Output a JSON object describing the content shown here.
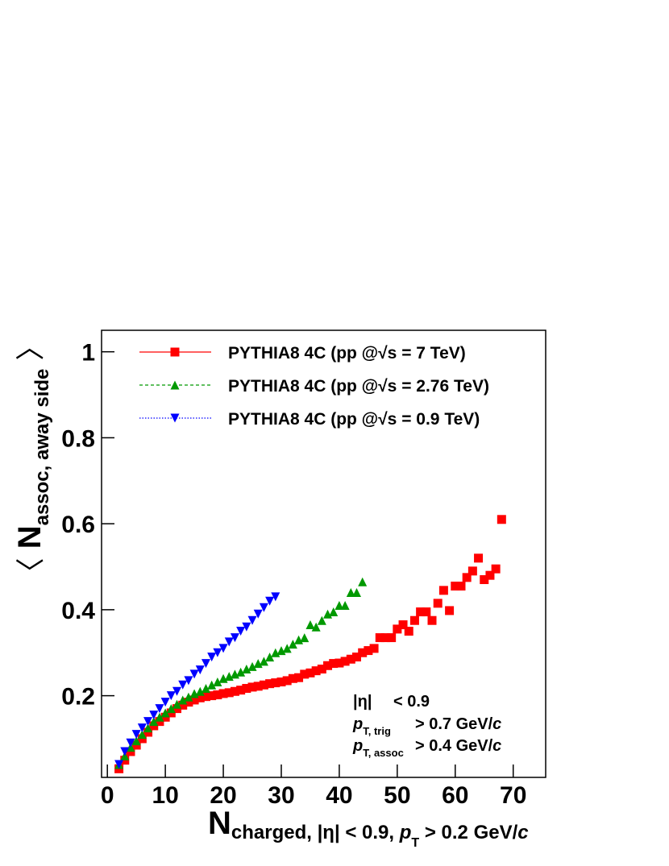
{
  "chart_data": {
    "type": "scatter",
    "x_label": [
      "N",
      "charged, |η| < 0.9, ",
      "p",
      "T",
      " > 0.2 GeV/",
      "c"
    ],
    "y_label": [
      "〈",
      " N",
      "assoc, away side",
      " 〉"
    ],
    "xlim": [
      -1,
      75.6
    ],
    "ylim": [
      0.01,
      1.05
    ],
    "xticks": [
      0,
      10,
      20,
      30,
      40,
      50,
      60,
      70
    ],
    "yticks": [
      0.2,
      0.4,
      0.6,
      0.8,
      1
    ],
    "legend": "top-left",
    "series": [
      {
        "name": "PYTHIA8 4C (pp @√s = 7 TeV)",
        "color": "#ff0000",
        "marker": "square",
        "line": "solid",
        "x": [
          2,
          3,
          4,
          5,
          6,
          7,
          8,
          9,
          10,
          11,
          12,
          13,
          14,
          15,
          16,
          17,
          18,
          19,
          20,
          21,
          22,
          23,
          24,
          25,
          26,
          27,
          28,
          29,
          30,
          31,
          32,
          33,
          34,
          35,
          36,
          37,
          38,
          39,
          40,
          41,
          42,
          43,
          44,
          45,
          46,
          47,
          48,
          49,
          50,
          51,
          52,
          53,
          54,
          55,
          56,
          57,
          58,
          59,
          60,
          61,
          62,
          63,
          64,
          65,
          66,
          67,
          68
        ],
        "values": [
          0.03,
          0.05,
          0.07,
          0.085,
          0.1,
          0.115,
          0.13,
          0.14,
          0.15,
          0.16,
          0.17,
          0.178,
          0.185,
          0.19,
          0.195,
          0.198,
          0.2,
          0.202,
          0.205,
          0.207,
          0.21,
          0.213,
          0.217,
          0.22,
          0.222,
          0.225,
          0.228,
          0.23,
          0.232,
          0.235,
          0.24,
          0.242,
          0.25,
          0.253,
          0.258,
          0.262,
          0.27,
          0.275,
          0.276,
          0.28,
          0.285,
          0.29,
          0.3,
          0.305,
          0.31,
          0.335,
          0.335,
          0.335,
          0.355,
          0.365,
          0.35,
          0.375,
          0.395,
          0.395,
          0.375,
          0.415,
          0.445,
          0.398,
          0.455,
          0.455,
          0.475,
          0.49,
          0.52,
          0.47,
          0.48,
          0.495,
          0.61
        ]
      },
      {
        "name": "PYTHIA8 4C (pp @√s = 2.76 TeV)",
        "color": "#009900",
        "marker": "triangle-up",
        "line": "dashed",
        "x": [
          2,
          3,
          4,
          5,
          6,
          7,
          8,
          9,
          10,
          11,
          12,
          13,
          14,
          15,
          16,
          17,
          18,
          19,
          20,
          21,
          22,
          23,
          24,
          25,
          26,
          27,
          28,
          29,
          30,
          31,
          32,
          33,
          34,
          35,
          36,
          37,
          38,
          39,
          40,
          41,
          42,
          43,
          44
        ],
        "values": [
          0.04,
          0.06,
          0.08,
          0.095,
          0.11,
          0.125,
          0.14,
          0.15,
          0.16,
          0.17,
          0.18,
          0.19,
          0.197,
          0.205,
          0.21,
          0.217,
          0.225,
          0.232,
          0.24,
          0.245,
          0.25,
          0.255,
          0.262,
          0.268,
          0.275,
          0.28,
          0.29,
          0.3,
          0.305,
          0.31,
          0.32,
          0.33,
          0.335,
          0.365,
          0.36,
          0.375,
          0.39,
          0.395,
          0.41,
          0.41,
          0.44,
          0.44,
          0.465
        ]
      },
      {
        "name": "PYTHIA8 4C (pp @√s = 0.9 TeV)",
        "color": "#0000ff",
        "marker": "triangle-down",
        "line": "dotted",
        "x": [
          2,
          3,
          4,
          5,
          6,
          7,
          8,
          9,
          10,
          11,
          12,
          13,
          14,
          15,
          16,
          17,
          18,
          19,
          20,
          21,
          22,
          23,
          24,
          25,
          26,
          27,
          28,
          29
        ],
        "values": [
          0.04,
          0.07,
          0.09,
          0.11,
          0.125,
          0.14,
          0.155,
          0.17,
          0.185,
          0.2,
          0.21,
          0.225,
          0.235,
          0.25,
          0.26,
          0.275,
          0.29,
          0.3,
          0.31,
          0.325,
          0.335,
          0.35,
          0.36,
          0.375,
          0.39,
          0.405,
          0.42,
          0.43
        ]
      }
    ],
    "annotations": [
      [
        "|η|",
        "<  0.9"
      ],
      [
        "p",
        "T, trig",
        ">  0.7 GeV/",
        "c"
      ],
      [
        "p",
        "T, assoc",
        ">  0.4 GeV/",
        "c"
      ]
    ]
  }
}
